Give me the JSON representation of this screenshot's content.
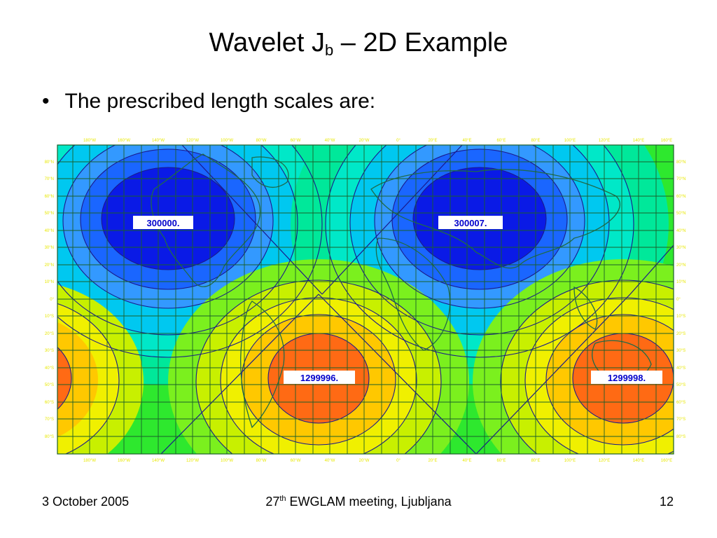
{
  "slide": {
    "title_main": "Wavelet J",
    "title_sub": "b",
    "title_rest": " – 2D Example",
    "bullet_marker": "•",
    "bullet_text": "The prescribed length scales are:"
  },
  "map": {
    "top_lon_labels": [
      "180°W",
      "160°W",
      "140°W",
      "120°W",
      "100°W",
      "80°W",
      "60°W",
      "40°W",
      "20°W",
      "0°",
      "20°E",
      "40°E",
      "60°E",
      "80°E",
      "100°E",
      "120°E",
      "140°E",
      "160°E"
    ],
    "bottom_lon_labels": [
      "180°W",
      "160°W",
      "140°W",
      "120°W",
      "100°W",
      "80°W",
      "60°W",
      "40°W",
      "20°W",
      "0°",
      "20°E",
      "40°E",
      "60°E",
      "80°E",
      "100°E",
      "120°E",
      "140°E",
      "160°E"
    ],
    "left_lat_labels": [
      "80°N",
      "70°N",
      "60°N",
      "50°N",
      "40°N",
      "30°N",
      "20°N",
      "10°N",
      "0°",
      "10°S",
      "20°S",
      "30°S",
      "40°S",
      "50°S",
      "60°S",
      "70°S",
      "80°S"
    ],
    "right_lat_labels": [
      "80°N",
      "70°N",
      "60°N",
      "50°N",
      "40°N",
      "30°N",
      "20°N",
      "10°N",
      "0°",
      "10°S",
      "20°S",
      "30°S",
      "40°S",
      "50°S",
      "60°S",
      "70°S",
      "80°S"
    ],
    "value_labels": [
      "300000.",
      "300007.",
      "1299996.",
      "1299998."
    ],
    "colors": {
      "label_yellow": "#e8e800",
      "contour_line": "#1a1a8c",
      "grid_line": "#1a5f2a",
      "coast": "#1f6b4a",
      "label_text": "#0000cc"
    }
  },
  "footer": {
    "date": "3 October 2005",
    "meeting_num": "27",
    "meeting_sup": "th",
    "meeting_rest": " EWGLAM meeting, Ljubljana",
    "page": "12"
  }
}
